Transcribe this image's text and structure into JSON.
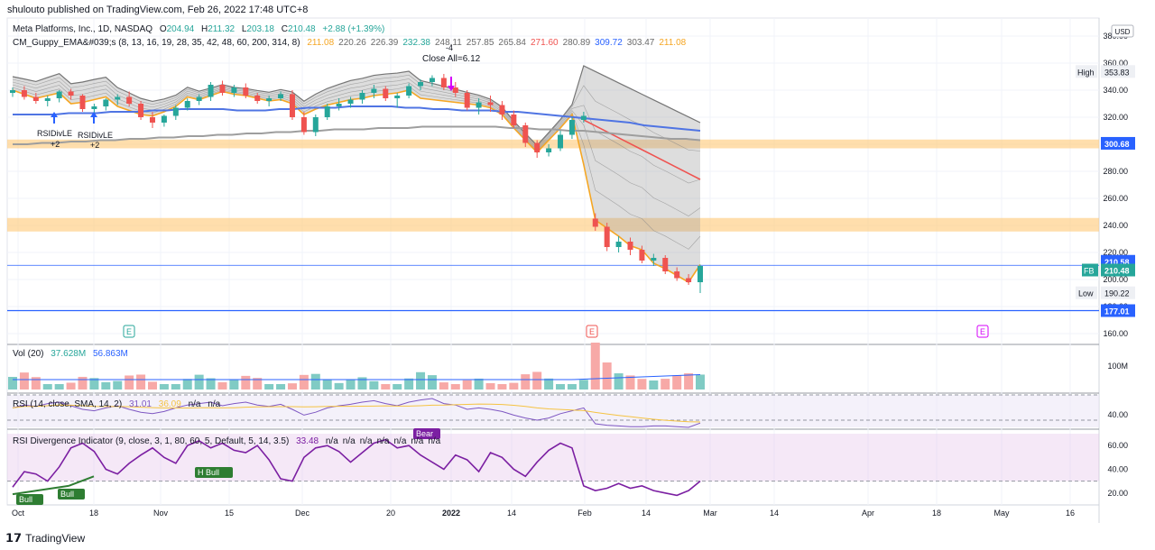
{
  "header": {
    "published": "shulouto published on TradingView.com, Feb 26, 2022 17:48 UTC+8"
  },
  "legend": {
    "symbol": "Meta Platforms, Inc., 1D, NASDAQ",
    "o_label": "O",
    "o_val": "204.94",
    "h_label": "H",
    "h_val": "211.32",
    "l_label": "L",
    "l_val": "203.18",
    "c_label": "C",
    "c_val": "210.48",
    "chg": "+2.88 (+1.39%)",
    "guppy_name": "CM_Guppy_EMA&#039;s (8, 13, 16, 19, 28, 35, 42, 48, 60, 200, 314, 8)",
    "guppy_vals": [
      {
        "v": "211.08",
        "c": "#f5a623"
      },
      {
        "v": "220.26",
        "c": "#6b6b6b"
      },
      {
        "v": "226.39",
        "c": "#6b6b6b"
      },
      {
        "v": "232.38",
        "c": "#26a69a"
      },
      {
        "v": "248.11",
        "c": "#6b6b6b"
      },
      {
        "v": "257.85",
        "c": "#6b6b6b"
      },
      {
        "v": "265.84",
        "c": "#6b6b6b"
      },
      {
        "v": "271.60",
        "c": "#ef5350"
      },
      {
        "v": "280.89",
        "c": "#6b6b6b"
      },
      {
        "v": "309.72",
        "c": "#2962ff"
      },
      {
        "v": "303.47",
        "c": "#6b6b6b"
      },
      {
        "v": "211.08",
        "c": "#f5a623"
      }
    ],
    "vol_name": "Vol (20)",
    "vol_val1": "37.628M",
    "vol_val2": "56.863M",
    "rsi_name": "RSI (14, close, SMA, 14, 2)",
    "rsi_val": "31.01",
    "rsi_val2": "36.09",
    "rsi_na1": "n/a",
    "rsi_na2": "n/a",
    "rdi_name": "RSI Divergence Indicator (9, close, 3, 1, 80, 60, 5, Default, 5, 14, 3.5)",
    "rdi_val": "33.48",
    "rdi_na": [
      "n/a",
      "n/a",
      "n/a",
      "n/a",
      "n/a",
      "n/a",
      "n/a"
    ]
  },
  "chart_data": {
    "type": "line",
    "title": "Meta Platforms, Inc., 1D, NASDAQ",
    "x_ticks": [
      "Oct",
      "18",
      "Nov",
      "15",
      "Dec",
      "20",
      "2022",
      "14",
      "Feb",
      "14",
      "Mar",
      "14",
      "Apr",
      "18",
      "May",
      "16"
    ],
    "price_ticks": [
      "380.00",
      "360.00",
      "340.00",
      "320.00",
      "300.00",
      "280.00",
      "260.00",
      "240.00",
      "220.00",
      "200.00",
      "180.00",
      "160.00"
    ],
    "ylim": [
      160,
      385
    ],
    "currency": "USD",
    "price_labels": {
      "high_label": "High",
      "high": "353.83",
      "low_label": "Low",
      "low": "190.22",
      "level_300": "300.68",
      "last_ema": "210.58",
      "sym": "FB",
      "last": "210.48",
      "level_177": "177.01"
    },
    "series": [
      {
        "values": [
          340,
          337,
          334,
          336,
          338,
          335,
          330,
          331,
          333,
          335,
          328,
          325,
          322,
          321,
          324,
          328,
          332,
          335,
          333,
          336,
          339,
          337,
          336,
          334,
          332,
          333,
          330,
          326,
          322,
          326,
          329,
          331,
          333,
          334,
          336,
          337,
          338,
          340,
          338,
          334,
          333,
          332,
          331,
          330,
          329,
          327,
          322,
          312,
          303,
          295,
          294,
          303,
          312,
          322,
          285,
          244,
          238,
          232,
          225,
          222,
          215,
          212,
          208,
          203,
          198,
          211
        ]
      },
      {
        "values": [
          322,
          322,
          322,
          322,
          323,
          323,
          323,
          324,
          324,
          324,
          325,
          325,
          326,
          326,
          326,
          326,
          325,
          325,
          325,
          326,
          326,
          327,
          327,
          327,
          328,
          328,
          328,
          328,
          327,
          327,
          326,
          326,
          325,
          325,
          325,
          324,
          324,
          323,
          322,
          321,
          320,
          319,
          318,
          317,
          316,
          314,
          313,
          312,
          311,
          310
        ]
      },
      {
        "values": [
          300,
          300,
          301,
          301,
          302,
          302,
          303,
          303,
          304,
          304,
          305,
          305,
          306,
          306,
          307,
          307,
          308,
          308,
          309,
          309,
          310,
          310,
          311,
          311,
          311,
          312,
          312,
          312,
          313,
          313,
          313,
          313,
          313,
          313,
          312,
          312,
          311,
          311,
          310,
          310,
          309,
          308,
          307,
          306,
          305,
          304,
          304,
          303
        ]
      }
    ],
    "candles": [
      [
        338,
        342,
        335,
        340
      ],
      [
        340,
        343,
        333,
        335
      ],
      [
        335,
        338,
        330,
        332
      ],
      [
        332,
        336,
        328,
        334
      ],
      [
        334,
        340,
        331,
        339
      ],
      [
        339,
        341,
        333,
        336
      ],
      [
        336,
        337,
        324,
        326
      ],
      [
        326,
        330,
        320,
        328
      ],
      [
        328,
        334,
        325,
        333
      ],
      [
        333,
        337,
        329,
        335
      ],
      [
        335,
        339,
        328,
        330
      ],
      [
        330,
        332,
        318,
        320
      ],
      [
        320,
        324,
        312,
        316
      ],
      [
        316,
        322,
        313,
        321
      ],
      [
        321,
        329,
        318,
        327
      ],
      [
        327,
        334,
        325,
        332
      ],
      [
        332,
        337,
        329,
        335
      ],
      [
        335,
        346,
        332,
        344
      ],
      [
        344,
        347,
        336,
        338
      ],
      [
        338,
        344,
        335,
        342
      ],
      [
        342,
        345,
        334,
        336
      ],
      [
        336,
        338,
        330,
        332
      ],
      [
        332,
        336,
        328,
        334
      ],
      [
        334,
        339,
        332,
        337
      ],
      [
        337,
        340,
        318,
        320
      ],
      [
        320,
        324,
        307,
        309
      ],
      [
        309,
        322,
        306,
        320
      ],
      [
        320,
        330,
        318,
        328
      ],
      [
        328,
        334,
        325,
        330
      ],
      [
        330,
        335,
        327,
        333
      ],
      [
        333,
        340,
        330,
        338
      ],
      [
        338,
        344,
        334,
        341
      ],
      [
        341,
        343,
        332,
        334
      ],
      [
        334,
        338,
        327,
        336
      ],
      [
        336,
        345,
        334,
        343
      ],
      [
        343,
        348,
        340,
        346
      ],
      [
        346,
        351,
        343,
        349
      ],
      [
        349,
        352,
        340,
        342
      ],
      [
        342,
        346,
        335,
        338
      ],
      [
        338,
        340,
        325,
        327
      ],
      [
        327,
        334,
        322,
        331
      ],
      [
        331,
        336,
        324,
        329
      ],
      [
        329,
        332,
        318,
        322
      ],
      [
        322,
        325,
        312,
        314
      ],
      [
        314,
        316,
        298,
        301
      ],
      [
        301,
        303,
        290,
        294
      ],
      [
        294,
        300,
        291,
        297
      ],
      [
        297,
        310,
        295,
        307
      ],
      [
        307,
        320,
        304,
        318
      ],
      [
        318,
        324,
        316,
        321
      ],
      [
        245,
        249,
        236,
        239
      ],
      [
        239,
        242,
        221,
        224
      ],
      [
        224,
        232,
        220,
        228
      ],
      [
        228,
        231,
        218,
        222
      ],
      [
        222,
        225,
        212,
        214
      ],
      [
        214,
        219,
        210,
        216
      ],
      [
        216,
        218,
        204,
        206
      ],
      [
        206,
        209,
        199,
        201
      ],
      [
        201,
        204,
        196,
        198
      ],
      [
        198,
        211,
        190,
        210
      ]
    ],
    "volume_label": "100M",
    "rsi_ticks": [
      "40.00"
    ],
    "rsi_values": [
      52,
      56,
      54,
      58,
      60,
      55,
      50,
      48,
      52,
      55,
      50,
      46,
      44,
      47,
      52,
      56,
      58,
      60,
      55,
      58,
      60,
      56,
      54,
      57,
      50,
      42,
      46,
      52,
      55,
      57,
      60,
      62,
      58,
      55,
      60,
      63,
      65,
      58,
      56,
      50,
      52,
      50,
      47,
      42,
      38,
      35,
      38,
      44,
      48,
      52,
      30,
      28,
      27,
      26,
      26,
      27,
      27,
      26,
      25,
      31
    ],
    "rdi_ticks": [
      "60.00",
      "40.00",
      "20.00"
    ],
    "rdi_values": [
      25,
      38,
      36,
      30,
      42,
      58,
      62,
      55,
      40,
      36,
      45,
      52,
      58,
      50,
      45,
      60,
      64,
      58,
      62,
      56,
      54,
      60,
      48,
      32,
      30,
      50,
      58,
      60,
      55,
      46,
      54,
      62,
      65,
      58,
      60,
      52,
      46,
      40,
      52,
      48,
      38,
      54,
      50,
      40,
      34,
      46,
      56,
      62,
      58,
      26,
      22,
      24,
      28,
      24,
      26,
      22,
      20,
      18,
      22,
      30
    ],
    "rdi_markers": {
      "h_bull": "H Bull",
      "bull1": "Bull",
      "bull2": "Bull",
      "bear": "Bear"
    },
    "signal_labels": {
      "rsidiv1": "RSIDivLE",
      "rsidiv1_n": "+2",
      "rsidiv2": "RSIDivLE",
      "rsidiv2_n": "+2",
      "close_all": "Close All=6.12",
      "close_n": "-4"
    },
    "events": [
      "E",
      "E",
      "E"
    ]
  },
  "footer": {
    "brand": "TradingView",
    "mark": "𝟭𝟳"
  }
}
